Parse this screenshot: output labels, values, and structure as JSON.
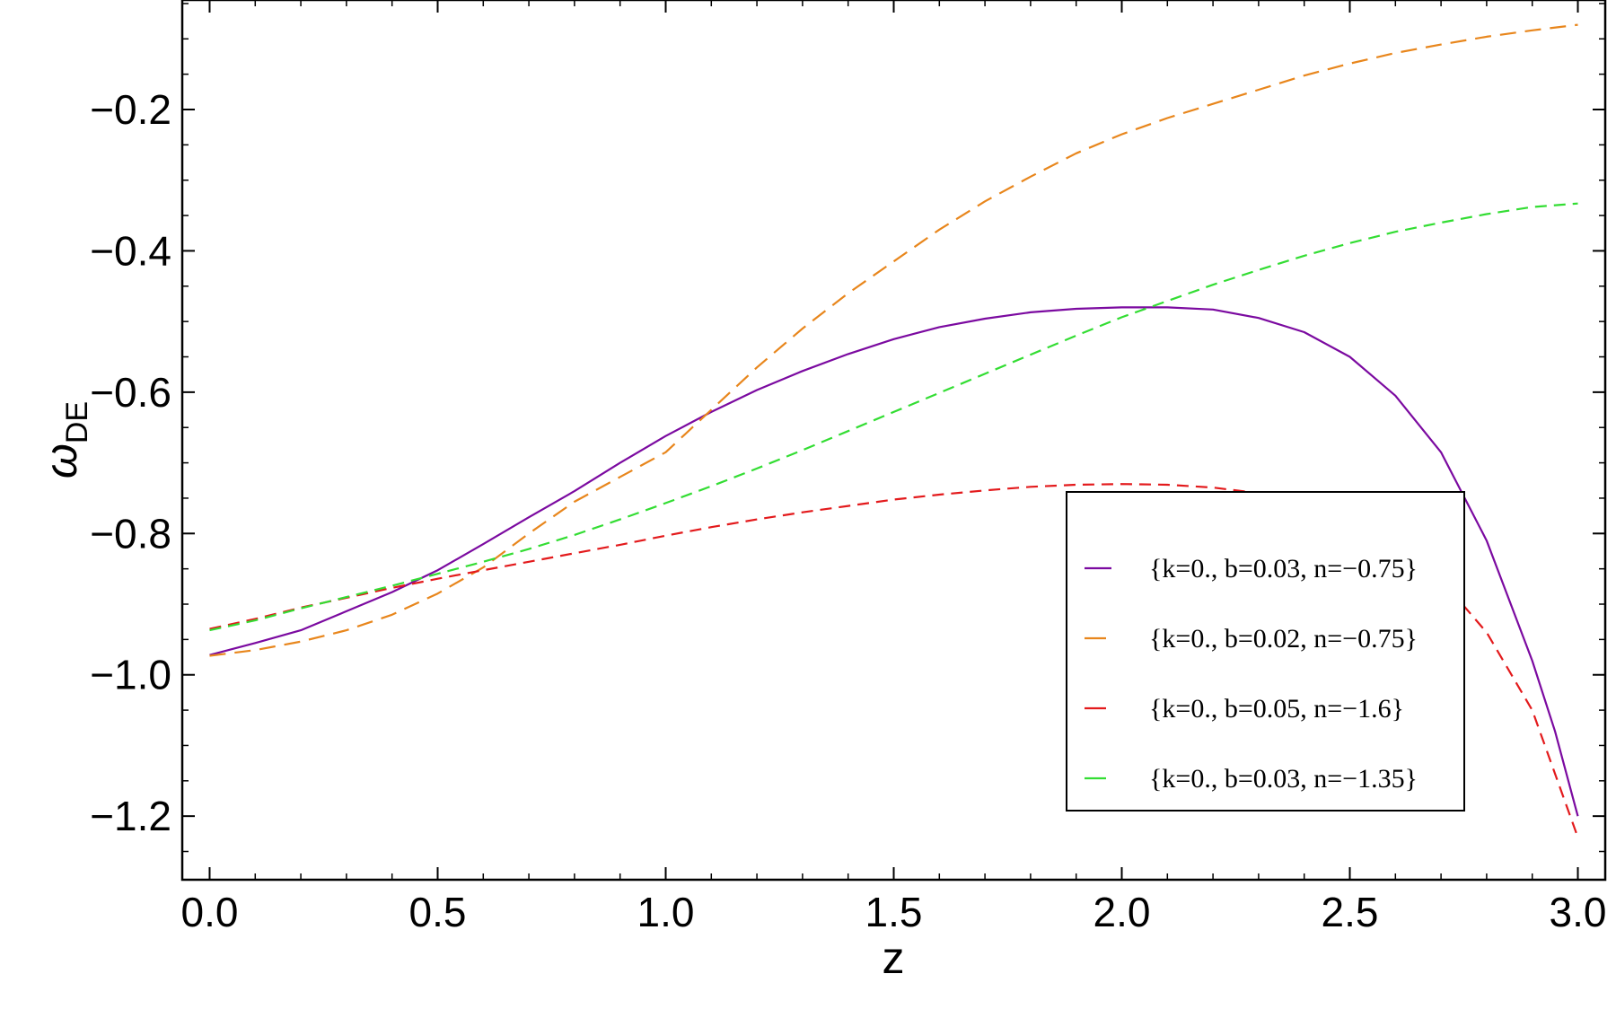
{
  "chart_data": {
    "type": "line",
    "title": "",
    "xlabel": "z",
    "ylabel_main": "ω",
    "ylabel_sub": "DE",
    "xlim": [
      -0.06,
      3.06
    ],
    "ylim": [
      -1.29,
      -0.045
    ],
    "xticks": [
      0.0,
      0.5,
      1.0,
      1.5,
      2.0,
      2.5,
      3.0
    ],
    "xtick_labels": [
      "0.0",
      "0.5",
      "1.0",
      "1.5",
      "2.0",
      "2.5",
      "3.0"
    ],
    "yticks": [
      -1.2,
      -1.0,
      -0.8,
      -0.6,
      -0.4,
      -0.2
    ],
    "ytick_labels": [
      "−1.2",
      "−1.0",
      "−0.8",
      "−0.6",
      "−0.4",
      "−0.2"
    ],
    "grid": false,
    "legend_position": "bottom-right",
    "series": [
      {
        "name": "{k=0., b=0.03, n=−0.75}",
        "color": "#7b0aa0",
        "dash": "solid",
        "x": [
          0.0,
          0.1,
          0.2,
          0.3,
          0.4,
          0.5,
          0.6,
          0.7,
          0.8,
          0.9,
          1.0,
          1.1,
          1.2,
          1.3,
          1.4,
          1.5,
          1.6,
          1.7,
          1.8,
          1.9,
          2.0,
          2.1,
          2.2,
          2.3,
          2.4,
          2.5,
          2.6,
          2.7,
          2.8,
          2.9,
          2.95,
          3.0
        ],
        "y": [
          -0.972,
          -0.955,
          -0.937,
          -0.91,
          -0.883,
          -0.852,
          -0.815,
          -0.777,
          -0.74,
          -0.7,
          -0.662,
          -0.628,
          -0.597,
          -0.57,
          -0.546,
          -0.525,
          -0.508,
          -0.496,
          -0.487,
          -0.482,
          -0.48,
          -0.48,
          -0.483,
          -0.495,
          -0.515,
          -0.55,
          -0.605,
          -0.685,
          -0.81,
          -0.98,
          -1.08,
          -1.2
        ]
      },
      {
        "name": "{k=0., b=0.02, n=−0.75}",
        "color": "#e8861c",
        "dash": "long",
        "x": [
          0.0,
          0.1,
          0.2,
          0.3,
          0.4,
          0.5,
          0.6,
          0.7,
          0.8,
          0.9,
          1.0,
          1.1,
          1.2,
          1.3,
          1.4,
          1.5,
          1.6,
          1.7,
          1.8,
          1.9,
          2.0,
          2.1,
          2.2,
          2.3,
          2.4,
          2.5,
          2.6,
          2.7,
          2.8,
          2.9,
          3.0
        ],
        "y": [
          -0.973,
          -0.965,
          -0.953,
          -0.937,
          -0.915,
          -0.885,
          -0.848,
          -0.8,
          -0.755,
          -0.72,
          -0.685,
          -0.625,
          -0.565,
          -0.51,
          -0.46,
          -0.415,
          -0.37,
          -0.33,
          -0.295,
          -0.262,
          -0.235,
          -0.212,
          -0.192,
          -0.172,
          -0.152,
          -0.135,
          -0.12,
          -0.108,
          -0.097,
          -0.088,
          -0.08
        ]
      },
      {
        "name": "{k=0., b=0.05, n=−1.6}",
        "color": "#e31a1c",
        "dash": "medium",
        "x": [
          0.0,
          0.1,
          0.2,
          0.3,
          0.4,
          0.5,
          0.6,
          0.7,
          0.8,
          0.9,
          1.0,
          1.1,
          1.2,
          1.3,
          1.4,
          1.5,
          1.6,
          1.7,
          1.8,
          1.9,
          2.0,
          2.1,
          2.2,
          2.3,
          2.4,
          2.5,
          2.6,
          2.7,
          2.8,
          2.9,
          3.0
        ],
        "y": [
          -0.935,
          -0.921,
          -0.905,
          -0.891,
          -0.877,
          -0.864,
          -0.852,
          -0.84,
          -0.828,
          -0.816,
          -0.803,
          -0.791,
          -0.78,
          -0.77,
          -0.761,
          -0.752,
          -0.745,
          -0.739,
          -0.734,
          -0.731,
          -0.73,
          -0.731,
          -0.735,
          -0.743,
          -0.757,
          -0.78,
          -0.815,
          -0.865,
          -0.94,
          -1.05,
          -1.23
        ]
      },
      {
        "name": "{k=0., b=0.03, n=−1.35}",
        "color": "#33dd33",
        "dash": "medium",
        "x": [
          0.0,
          0.1,
          0.2,
          0.3,
          0.4,
          0.5,
          0.6,
          0.7,
          0.8,
          0.9,
          1.0,
          1.1,
          1.2,
          1.3,
          1.4,
          1.5,
          1.6,
          1.7,
          1.8,
          1.9,
          2.0,
          2.1,
          2.2,
          2.3,
          2.4,
          2.5,
          2.6,
          2.7,
          2.8,
          2.9,
          3.0
        ],
        "y": [
          -0.937,
          -0.923,
          -0.906,
          -0.89,
          -0.874,
          -0.857,
          -0.84,
          -0.822,
          -0.802,
          -0.78,
          -0.757,
          -0.733,
          -0.708,
          -0.682,
          -0.655,
          -0.628,
          -0.601,
          -0.574,
          -0.547,
          -0.52,
          -0.494,
          -0.471,
          -0.448,
          -0.427,
          -0.407,
          -0.389,
          -0.373,
          -0.36,
          -0.348,
          -0.338,
          -0.333
        ]
      }
    ]
  }
}
